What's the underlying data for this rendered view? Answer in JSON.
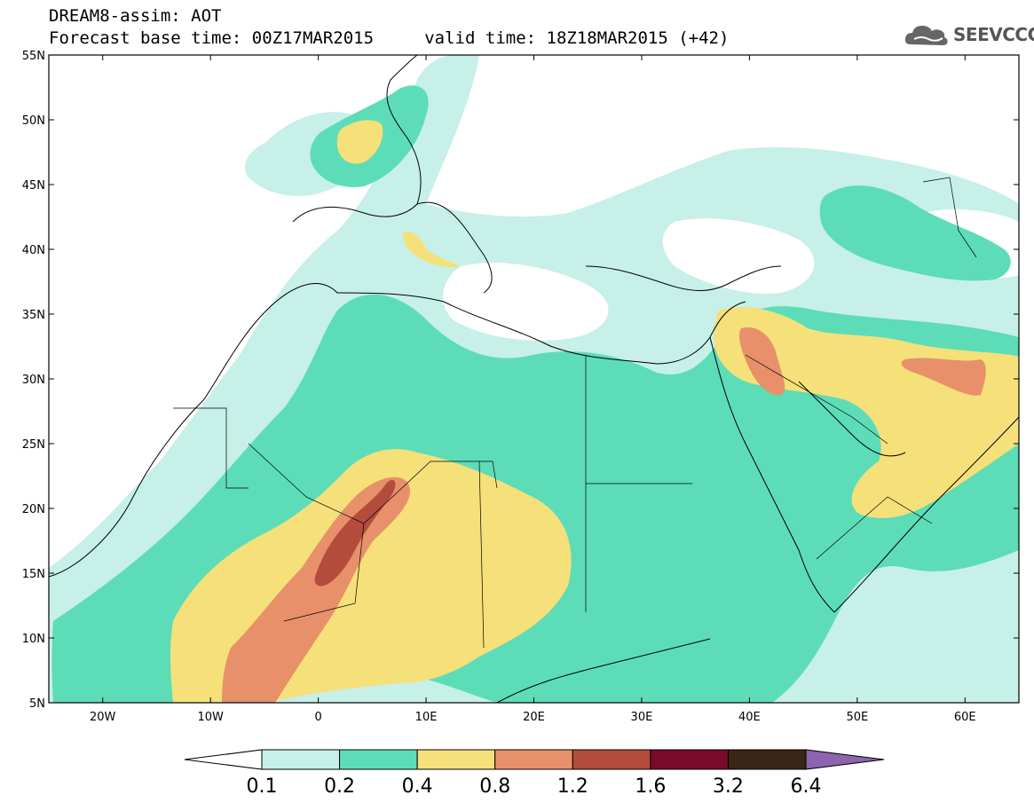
{
  "header": {
    "line1": "DREAM8-assim: AOT",
    "line2": "Forecast base time: 00Z17MAR2015     valid time: 18Z18MAR2015 (+42)"
  },
  "logo": {
    "text": "SEEVCCC",
    "icon": "cloud-icon"
  },
  "map": {
    "lat_labels": [
      "55N",
      "50N",
      "45N",
      "40N",
      "35N",
      "30N",
      "25N",
      "20N",
      "15N",
      "10N",
      "5N"
    ],
    "lon_labels": [
      "20W",
      "10W",
      "0",
      "10E",
      "20E",
      "30E",
      "40E",
      "50E",
      "60E"
    ],
    "lat_range": [
      5,
      55
    ],
    "lon_range": [
      -25,
      65
    ]
  },
  "colorbar": {
    "labels": [
      "0.1",
      "0.2",
      "0.4",
      "0.8",
      "1.2",
      "1.6",
      "3.2",
      "6.4"
    ],
    "colors": [
      "#ffffff",
      "#c6f0e8",
      "#5ddcb8",
      "#f5e07a",
      "#e8906a",
      "#b44c3c",
      "#7a0a2a",
      "#3a2614",
      "#8c64b0"
    ]
  },
  "chart_data": {
    "type": "heatmap",
    "title": "DREAM8-assim: AOT",
    "subtitle": "Forecast base time: 00Z17MAR2015     valid time: 18Z18MAR2015 (+42)",
    "levels": [
      0.1,
      0.2,
      0.4,
      0.8,
      1.2,
      1.6,
      3.2,
      6.4
    ],
    "x_ticks": [
      "20W",
      "10W",
      "0",
      "10E",
      "20E",
      "30E",
      "40E",
      "50E",
      "60E"
    ],
    "y_ticks": [
      "55N",
      "50N",
      "45N",
      "40N",
      "35N",
      "30N",
      "25N",
      "20N",
      "15N",
      "10N",
      "5N"
    ]
  }
}
